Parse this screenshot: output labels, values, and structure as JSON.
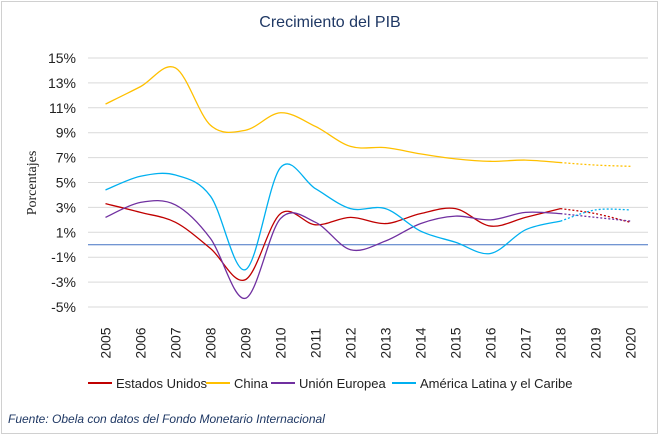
{
  "source": "Fuente: Obela con datos del Fondo Monetario Internacional",
  "chart_data": {
    "type": "line",
    "title": "Crecimiento del PIB",
    "ylabel": "Porcentajes",
    "xlabel": "",
    "ylim": [
      -5,
      15
    ],
    "yticks": [
      -5,
      -3,
      -1,
      1,
      3,
      5,
      7,
      9,
      11,
      13,
      15
    ],
    "ytick_labels": [
      "-5%",
      "-3%",
      "-1%",
      "1%",
      "3%",
      "5%",
      "7%",
      "9%",
      "11%",
      "13%",
      "15%"
    ],
    "categories": [
      "2005",
      "2006",
      "2007",
      "2008",
      "2009",
      "2010",
      "2011",
      "2012",
      "2013",
      "2014",
      "2015",
      "2016",
      "2017",
      "2018",
      "2019",
      "2020"
    ],
    "grid": true,
    "legend": "bottom",
    "projection_from": "2018",
    "series": [
      {
        "name": "Estados Unidos",
        "color": "#c00000",
        "values": [
          3.3,
          2.6,
          1.8,
          -0.3,
          -2.8,
          2.5,
          1.6,
          2.2,
          1.7,
          2.5,
          2.9,
          1.5,
          2.2,
          2.9,
          2.5,
          1.8
        ]
      },
      {
        "name": "China",
        "color": "#ffc000",
        "values": [
          11.3,
          12.7,
          14.2,
          9.6,
          9.2,
          10.6,
          9.5,
          7.9,
          7.8,
          7.3,
          6.9,
          6.7,
          6.8,
          6.6,
          6.4,
          6.3
        ]
      },
      {
        "name": "Unión Europea",
        "color": "#7030a0",
        "values": [
          2.2,
          3.4,
          3.2,
          0.5,
          -4.3,
          2.1,
          1.8,
          -0.4,
          0.3,
          1.7,
          2.3,
          2.0,
          2.6,
          2.5,
          2.2,
          1.9
        ]
      },
      {
        "name": "América Latina y el Caribe",
        "color": "#00b0f0",
        "values": [
          4.4,
          5.5,
          5.6,
          3.9,
          -2.0,
          6.2,
          4.5,
          2.9,
          2.9,
          1.1,
          0.2,
          -0.7,
          1.2,
          1.9,
          2.8,
          2.8
        ]
      }
    ]
  }
}
